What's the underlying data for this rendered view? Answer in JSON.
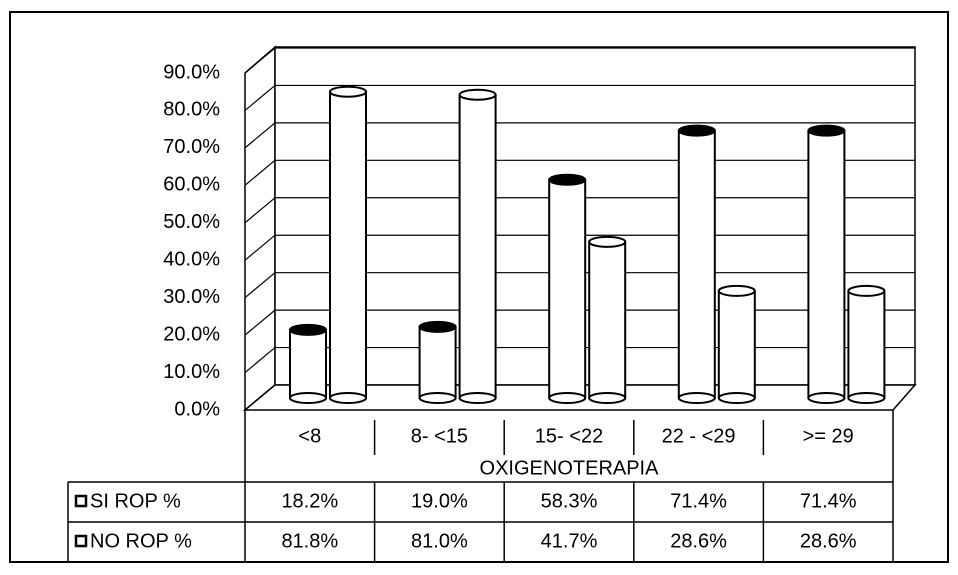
{
  "chart_data": {
    "type": "bar3d",
    "categories": [
      "<8",
      "8- <15",
      "15- <22",
      "22 - <29",
      ">= 29"
    ],
    "xlabel": "OXIGENOTERAPIA",
    "series": [
      {
        "name": "SI ROP %",
        "color": "#ffffff",
        "values": [
          18.2,
          19.0,
          58.3,
          71.4,
          71.4
        ],
        "value_labels": [
          "18.2%",
          "19.0%",
          "58.3%",
          "71.4%",
          "71.4%"
        ]
      },
      {
        "name": "NO ROP %",
        "color": "#ffffff",
        "values": [
          81.8,
          81.0,
          41.7,
          28.6,
          28.6
        ],
        "value_labels": [
          "81.8%",
          "81.0%",
          "41.7%",
          "28.6%",
          "28.6%"
        ]
      }
    ],
    "ylim": [
      0,
      90
    ],
    "yticks": [
      {
        "value": 0,
        "label": "0.0%"
      },
      {
        "value": 10,
        "label": "10.0%"
      },
      {
        "value": 20,
        "label": "20.0%"
      },
      {
        "value": 30,
        "label": "30.0%"
      },
      {
        "value": 40,
        "label": "40.0%"
      },
      {
        "value": 50,
        "label": "50.0%"
      },
      {
        "value": 60,
        "label": "60.0%"
      },
      {
        "value": 70,
        "label": "70.0%"
      },
      {
        "value": 80,
        "label": "80.0%"
      },
      {
        "value": 90,
        "label": "90.0%"
      }
    ],
    "grid": true
  }
}
